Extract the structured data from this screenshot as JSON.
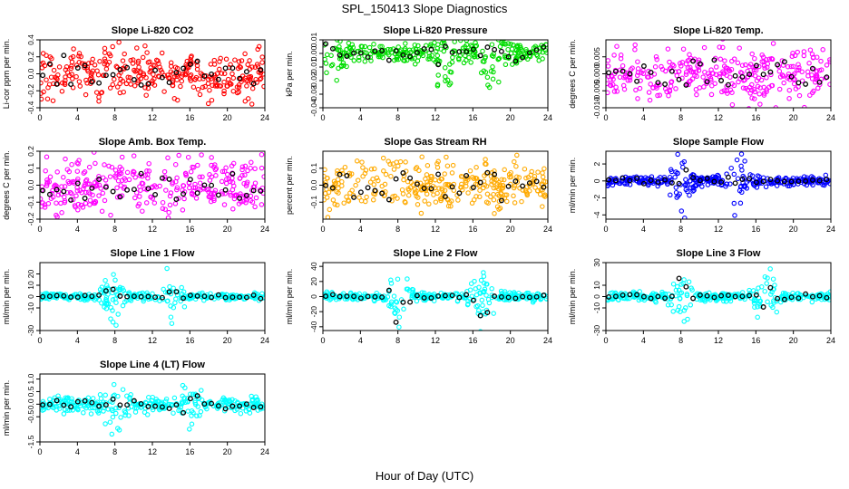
{
  "page": {
    "title": "SPL_150413  Slope Diagnostics",
    "xlabel": "Hour of Day (UTC)"
  },
  "colors": {
    "black_points": "#000000"
  },
  "chart_data": [
    {
      "type": "scatter",
      "title": "Slope Li-820 CO2",
      "ylabel": "Li-cor ppm per min.",
      "xlim": [
        0,
        24
      ],
      "ylim": [
        -0.4,
        0.4
      ],
      "yticks": [
        "-0.4",
        "-0.2",
        "0.0",
        "0.2",
        "0.4"
      ],
      "xticks": [
        "0",
        "4",
        "8",
        "12",
        "16",
        "20",
        "24"
      ],
      "color": "#ff0000",
      "spread": 0.14,
      "spike_hours": [],
      "spike_amp": 0
    },
    {
      "type": "scatter",
      "title": "Slope Li-820 Pressure",
      "ylabel": "kPa per min.",
      "xlim": [
        0,
        24
      ],
      "ylim": [
        -0.04,
        0.01
      ],
      "yticks": [
        "-0.04",
        "-0.03",
        "-0.02",
        "-0.01",
        "0.00",
        "0.01"
      ],
      "xticks": [
        "0",
        "4",
        "8",
        "12",
        "16",
        "20",
        "24"
      ],
      "color": "#00dd00",
      "spread": 0.004,
      "spike_hours": [
        1,
        13,
        18
      ],
      "spike_amp": 0.02
    },
    {
      "type": "scatter",
      "title": "Slope Li-820 Temp.",
      "ylabel": "degrees C per min.",
      "xlim": [
        0,
        24
      ],
      "ylim": [
        -0.01,
        0.01
      ],
      "yticks": [
        "-0.010",
        "-0.005",
        "0.000",
        "0.005"
      ],
      "xticks": [
        "0",
        "4",
        "8",
        "12",
        "16",
        "20",
        "24"
      ],
      "color": "#ff00ff",
      "spread": 0.004,
      "spike_hours": [],
      "spike_amp": 0
    },
    {
      "type": "scatter",
      "title": "Slope Amb. Box Temp.",
      "ylabel": "degrees C per min.",
      "xlim": [
        0,
        24
      ],
      "ylim": [
        -0.2,
        0.2
      ],
      "yticks": [
        "-0.2",
        "-0.1",
        "0.0",
        "0.1",
        "0.2"
      ],
      "xticks": [
        "0",
        "4",
        "8",
        "12",
        "16",
        "20",
        "24"
      ],
      "color": "#ff00ff",
      "spread": 0.08,
      "spike_hours": [],
      "spike_amp": 0
    },
    {
      "type": "scatter",
      "title": "Slope Gas Stream RH",
      "ylabel": "percent per min.",
      "xlim": [
        0,
        24
      ],
      "ylim": [
        -0.2,
        0.2
      ],
      "yticks": [
        "-0.1",
        "0.0",
        "0.1"
      ],
      "xticks": [
        "0",
        "4",
        "8",
        "12",
        "16",
        "20",
        "24"
      ],
      "color": "#ffaa00",
      "spread": 0.07,
      "spike_hours": [],
      "spike_amp": 0
    },
    {
      "type": "scatter",
      "title": "Slope Sample Flow",
      "ylabel": "ml/min per min.",
      "xlim": [
        0,
        24
      ],
      "ylim": [
        -4.5,
        3.5
      ],
      "yticks": [
        "-4",
        "-2",
        "0",
        "2"
      ],
      "xticks": [
        "0",
        "4",
        "8",
        "12",
        "16",
        "20",
        "24"
      ],
      "color": "#0000ff",
      "spread": 0.3,
      "spike_hours": [
        8,
        14
      ],
      "spike_amp": 3.2
    },
    {
      "type": "scatter",
      "title": "Slope Line 1 Flow",
      "ylabel": "ml/min per min.",
      "xlim": [
        0,
        24
      ],
      "ylim": [
        -30,
        30
      ],
      "yticks": [
        "-30",
        "-10",
        "0",
        "10",
        "20"
      ],
      "xticks": [
        "0",
        "4",
        "8",
        "12",
        "16",
        "20",
        "24"
      ],
      "color": "#00ffff",
      "spread": 1.5,
      "spike_hours": [
        8,
        14
      ],
      "spike_amp": 22
    },
    {
      "type": "scatter",
      "title": "Slope Line 2 Flow",
      "ylabel": "ml/min per min.",
      "xlim": [
        0,
        24
      ],
      "ylim": [
        -45,
        45
      ],
      "yticks": [
        "-40",
        "-20",
        "0",
        "20",
        "40"
      ],
      "xticks": [
        "0",
        "4",
        "8",
        "12",
        "16",
        "20",
        "24"
      ],
      "color": "#00ffff",
      "spread": 2.5,
      "spike_hours": [
        8,
        17
      ],
      "spike_amp": 38
    },
    {
      "type": "scatter",
      "title": "Slope Line 3 Flow",
      "ylabel": "ml/min per min.",
      "xlim": [
        0,
        24
      ],
      "ylim": [
        -30,
        30
      ],
      "yticks": [
        "-30",
        "-10",
        "0",
        "10",
        "30"
      ],
      "xticks": [
        "0",
        "4",
        "8",
        "12",
        "16",
        "20",
        "24"
      ],
      "color": "#00ffff",
      "spread": 2,
      "spike_hours": [
        8,
        17
      ],
      "spike_amp": 22
    },
    {
      "type": "scatter",
      "title": "Slope Line 4 (LT) Flow",
      "ylabel": "ml/min per min.",
      "xlim": [
        0,
        24
      ],
      "ylim": [
        -1.5,
        1.2
      ],
      "yticks": [
        "-1.5",
        "-0.5",
        "0.0",
        "0.5",
        "1.0"
      ],
      "xticks": [
        "0",
        "4",
        "8",
        "12",
        "16",
        "20",
        "24"
      ],
      "color": "#00ffff",
      "spread": 0.15,
      "spike_hours": [
        8,
        16
      ],
      "spike_amp": 1.0
    }
  ]
}
